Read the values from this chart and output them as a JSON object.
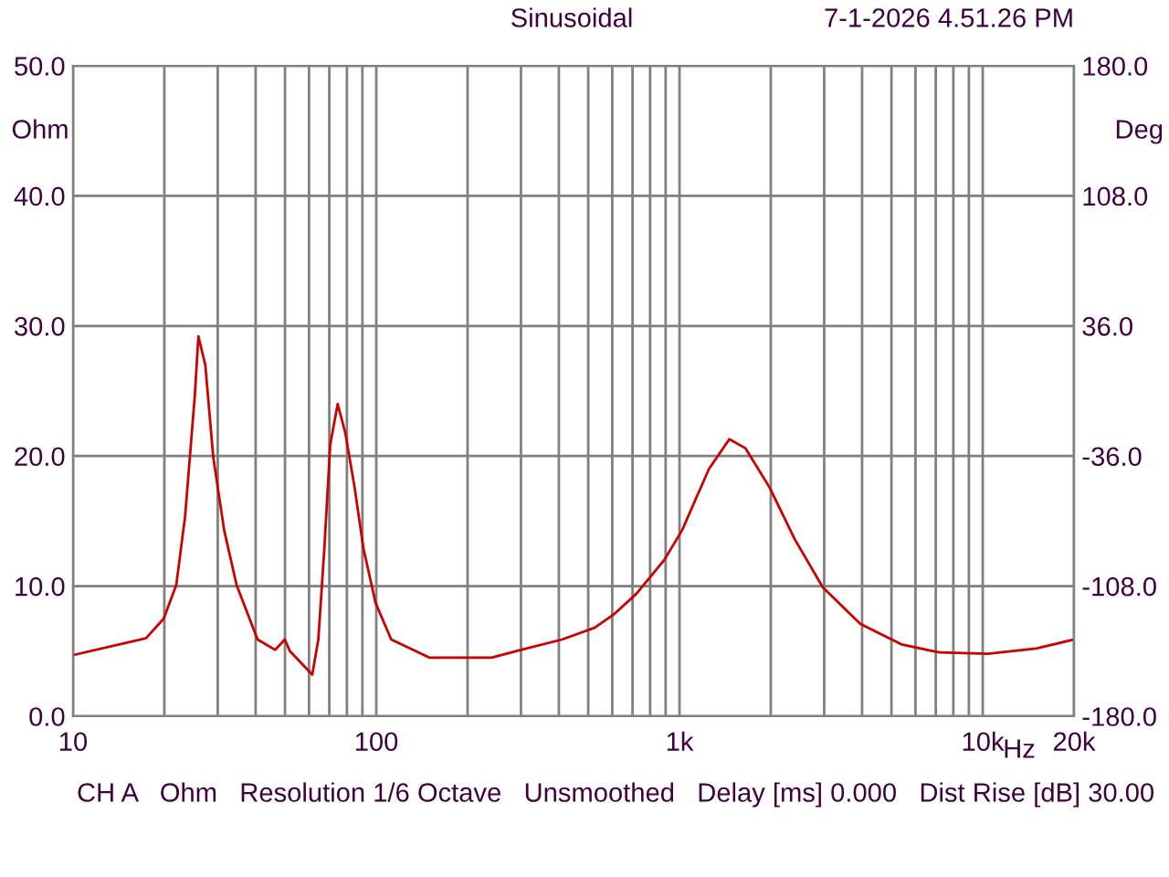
{
  "chart_data": {
    "type": "line",
    "title": "Sinusoidal",
    "subtitle": "7-1-2026 4.51.26 PM",
    "xlabel": "Hz",
    "ylabel": "Ohm",
    "y2label": "Deg",
    "annotations": [
      "CH A   Ohm   Resolution 1/6 Octave   Unsmoothed   Delay [ms] 0.000   Dist Rise [dB] 30.00"
    ],
    "log": "x",
    "grid": true,
    "marker": "none",
    "line_style": "solid",
    "xlim": [
      10,
      20000
    ],
    "xticks": [
      10,
      {
        "value": 20,
        "label": null
      },
      {
        "value": 30,
        "label": null
      },
      {
        "value": 40,
        "label": null
      },
      {
        "value": 50,
        "label": null
      },
      {
        "value": 60,
        "label": null
      },
      {
        "value": 70,
        "label": null
      },
      {
        "value": 80,
        "label": null
      },
      {
        "value": 90,
        "label": null
      },
      100,
      {
        "value": 200,
        "label": null
      },
      {
        "value": 300,
        "label": null
      },
      {
        "value": 400,
        "label": null
      },
      {
        "value": 500,
        "label": null
      },
      {
        "value": 600,
        "label": null
      },
      {
        "value": 700,
        "label": null
      },
      {
        "value": 800,
        "label": null
      },
      {
        "value": 900,
        "label": null
      },
      {
        "value": 1000,
        "label": "1k"
      },
      {
        "value": 2000,
        "label": null
      },
      {
        "value": 3000,
        "label": null
      },
      {
        "value": 4000,
        "label": null
      },
      {
        "value": 5000,
        "label": null
      },
      {
        "value": 6000,
        "label": null
      },
      {
        "value": 7000,
        "label": null
      },
      {
        "value": 8000,
        "label": null
      },
      {
        "value": 9000,
        "label": null
      },
      {
        "value": 10000,
        "label": "10k"
      },
      {
        "value": 20000,
        "label": "20k"
      }
    ],
    "ylim": [
      0,
      50
    ],
    "yticks": [
      {
        "value": 0,
        "label": "0.0"
      },
      {
        "value": 10,
        "label": "10.0"
      },
      {
        "value": 20,
        "label": "20.0"
      },
      {
        "value": 30,
        "label": "30.0"
      },
      {
        "value": 40,
        "label": "40.0"
      },
      {
        "value": 50,
        "label": "50.0"
      }
    ],
    "y2lim": [
      -180,
      180
    ],
    "y2ticks": [
      {
        "value": -180,
        "label": "-180.0"
      },
      {
        "value": -108,
        "label": "-108.0"
      },
      {
        "value": -36,
        "label": "-36.0"
      },
      {
        "value": 36,
        "label": "36.0"
      },
      {
        "value": 108,
        "label": "108.0"
      },
      {
        "value": 180,
        "label": "180.0"
      }
    ],
    "series": [
      {
        "color": "#cc0000",
        "x": [
          10,
          17.4,
          19.9,
          21.9,
          23.4,
          25.2,
          25.9,
          27.3,
          29,
          31.5,
          34.6,
          40.6,
          46.4,
          49.9,
          51.9,
          61.5,
          64.4,
          67.4,
          70.5,
          74.6,
          79,
          84.8,
          90.7,
          99.5,
          112,
          150,
          240,
          300,
          410,
          525,
          605,
          720,
          890,
          1020,
          1250,
          1460,
          1650,
          1980,
          2400,
          2970,
          3950,
          5430,
          7200,
          10400,
          15000,
          20000
        ],
        "values": [
          4.7,
          6.0,
          7.5,
          10.1,
          15.3,
          24.6,
          29.2,
          27.0,
          19.9,
          14.3,
          10.1,
          5.9,
          5.1,
          5.9,
          5.0,
          3.2,
          5.9,
          12.9,
          20.9,
          24.0,
          21.8,
          17.6,
          12.9,
          8.7,
          5.9,
          4.5,
          4.5,
          5.1,
          5.9,
          6.8,
          7.8,
          9.4,
          12.0,
          14.3,
          19.0,
          21.3,
          20.6,
          17.6,
          13.6,
          9.9,
          7.1,
          5.5,
          4.9,
          4.8,
          5.2,
          5.9
        ]
      }
    ]
  }
}
